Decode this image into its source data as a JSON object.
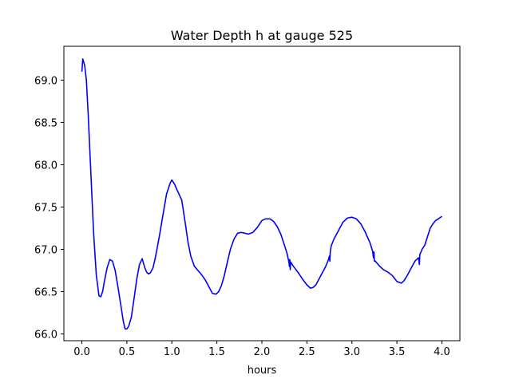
{
  "chart_data": {
    "type": "line",
    "title": "Water Depth h at gauge 525",
    "xlabel": "hours",
    "ylabel": "",
    "xlim": [
      -0.2,
      4.2
    ],
    "ylim": [
      65.92,
      69.4
    ],
    "x_ticks": [
      "0.0",
      "0.5",
      "1.0",
      "1.5",
      "2.0",
      "2.5",
      "3.0",
      "3.5",
      "4.0"
    ],
    "y_ticks": [
      "66.0",
      "66.5",
      "67.0",
      "67.5",
      "68.0",
      "68.5",
      "69.0"
    ],
    "grid": false,
    "series": [
      {
        "color": "#0000ff",
        "x": [
          0.0,
          0.01,
          0.03,
          0.05,
          0.07,
          0.1,
          0.13,
          0.16,
          0.19,
          0.21,
          0.23,
          0.25,
          0.28,
          0.31,
          0.34,
          0.37,
          0.4,
          0.43,
          0.46,
          0.48,
          0.5,
          0.52,
          0.55,
          0.58,
          0.61,
          0.64,
          0.67,
          0.7,
          0.72,
          0.74,
          0.76,
          0.79,
          0.82,
          0.86,
          0.9,
          0.94,
          0.98,
          1.0,
          1.03,
          1.05,
          1.08,
          1.11,
          1.15,
          1.18,
          1.21,
          1.25,
          1.29,
          1.33,
          1.37,
          1.41,
          1.45,
          1.49,
          1.52,
          1.55,
          1.58,
          1.61,
          1.65,
          1.69,
          1.73,
          1.77,
          1.81,
          1.85,
          1.9,
          1.95,
          2.0,
          2.04,
          2.09,
          2.13,
          2.17,
          2.21,
          2.25,
          2.28,
          2.3,
          2.305,
          2.31,
          2.315,
          2.32,
          2.35,
          2.4,
          2.45,
          2.5,
          2.54,
          2.57,
          2.6,
          2.63,
          2.67,
          2.71,
          2.74,
          2.75,
          2.755,
          2.76,
          2.77,
          2.8,
          2.85,
          2.9,
          2.95,
          3.0,
          3.05,
          3.1,
          3.15,
          3.2,
          3.23,
          3.24,
          3.245,
          3.25,
          3.26,
          3.3,
          3.35,
          3.4,
          3.45,
          3.5,
          3.55,
          3.58,
          3.62,
          3.66,
          3.7,
          3.74,
          3.75,
          3.755,
          3.76,
          3.78,
          3.81,
          3.84,
          3.87,
          3.9,
          3.93,
          3.96,
          4.0
        ],
        "values": [
          69.1,
          69.25,
          69.18,
          69.0,
          68.6,
          67.9,
          67.2,
          66.7,
          66.45,
          66.44,
          66.5,
          66.62,
          66.78,
          66.88,
          66.86,
          66.75,
          66.56,
          66.36,
          66.15,
          66.06,
          66.06,
          66.09,
          66.2,
          66.42,
          66.65,
          66.82,
          66.89,
          66.78,
          66.73,
          66.71,
          66.72,
          66.78,
          66.92,
          67.15,
          67.4,
          67.65,
          67.78,
          67.82,
          67.77,
          67.72,
          67.65,
          67.58,
          67.3,
          67.08,
          66.92,
          66.8,
          66.75,
          66.7,
          66.64,
          66.56,
          66.48,
          66.47,
          66.5,
          66.57,
          66.68,
          66.82,
          67.0,
          67.12,
          67.19,
          67.2,
          67.19,
          67.18,
          67.2,
          67.26,
          67.34,
          67.36,
          67.36,
          67.33,
          67.27,
          67.18,
          67.05,
          66.95,
          66.85,
          66.8,
          66.88,
          66.76,
          66.85,
          66.8,
          66.73,
          66.65,
          66.58,
          66.54,
          66.55,
          66.58,
          66.64,
          66.72,
          66.8,
          66.88,
          66.92,
          66.86,
          66.97,
          67.04,
          67.12,
          67.22,
          67.32,
          67.37,
          67.38,
          67.36,
          67.3,
          67.2,
          67.08,
          66.98,
          66.9,
          66.97,
          66.86,
          66.86,
          66.81,
          66.76,
          66.73,
          66.69,
          66.62,
          66.6,
          66.63,
          66.7,
          66.78,
          66.86,
          66.9,
          66.82,
          66.94,
          66.95,
          67.0,
          67.05,
          67.15,
          67.25,
          67.3,
          67.34,
          67.36,
          67.39
        ]
      }
    ]
  }
}
